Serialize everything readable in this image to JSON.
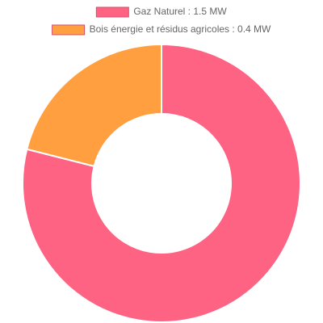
{
  "chart_data": {
    "type": "doughnut",
    "categories": [
      "Gaz Naturel : 1.5 MW",
      "Bois énergie et résidus agricoles : 0.4 MW"
    ],
    "values": [
      1.5,
      0.4
    ],
    "colors": [
      "#ff6384",
      "#ff9f40"
    ],
    "legend": "top"
  }
}
